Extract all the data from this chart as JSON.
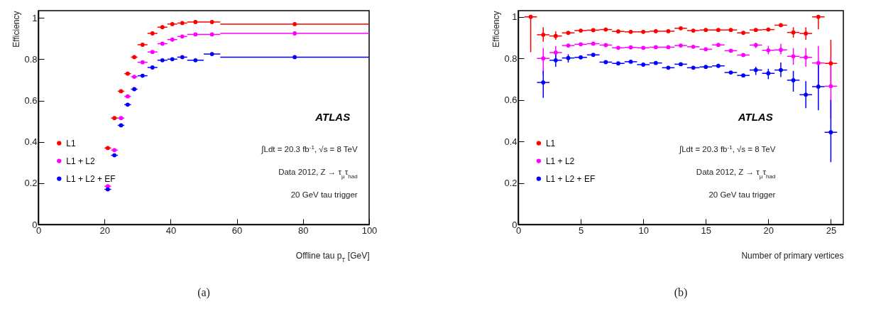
{
  "chart_data": [
    {
      "type": "scatter",
      "xlabel": "Offline tau p$_{T}$ [GeV]",
      "ylabel": "Efficiency",
      "xlim": [
        0,
        100
      ],
      "xticks": [
        0,
        20,
        40,
        60,
        80,
        100
      ],
      "ylim": [
        0,
        1.035
      ],
      "yticks": [
        0,
        0.2,
        0.4,
        0.6,
        0.8,
        1
      ],
      "grid": false,
      "legend": "bottom left",
      "marker": "circle",
      "x": [
        21,
        23,
        25,
        27,
        29,
        31.5,
        34.5,
        37.5,
        40.5,
        43.5,
        47.5,
        52.5,
        77.5
      ],
      "series": [
        {
          "name": "L1",
          "color": "#ff0000",
          "values": [
            0.37,
            0.515,
            0.645,
            0.73,
            0.81,
            0.87,
            0.925,
            0.955,
            0.97,
            0.975,
            0.98,
            0.98,
            0.97
          ],
          "xerrors": [
            1,
            1,
            1,
            1,
            1,
            1.5,
            1.5,
            1.5,
            1.5,
            1.5,
            2.5,
            2.5,
            22.5
          ]
        },
        {
          "name": "L1 + L2",
          "color": "#ff00ff",
          "values": [
            0.185,
            0.36,
            0.515,
            0.62,
            0.715,
            0.785,
            0.835,
            0.875,
            0.895,
            0.91,
            0.92,
            0.92,
            0.925
          ],
          "xerrors": [
            1,
            1,
            1,
            1,
            1,
            1.5,
            1.5,
            1.5,
            1.5,
            1.5,
            2.5,
            2.5,
            22.5
          ]
        },
        {
          "name": "L1 + L2 + EF",
          "color": "#0000ff",
          "values": [
            0.17,
            0.335,
            0.48,
            0.58,
            0.655,
            0.72,
            0.76,
            0.795,
            0.8,
            0.81,
            0.795,
            0.825,
            0.81
          ],
          "xerrors": [
            1,
            1,
            1,
            1,
            1,
            1.5,
            1.5,
            1.5,
            1.5,
            1.5,
            2.5,
            2.5,
            22.5
          ]
        }
      ],
      "annotations": [
        "ATLAS",
        "∫Ldt = 20.3 fb$^{-1}$, √s = 8 TeV",
        "Data 2012, Z → τ$_{μ}$τ$_{had}$",
        "20 GeV tau trigger",
        "(a)"
      ]
    },
    {
      "type": "scatter",
      "xlabel": "Number of primary vertices",
      "ylabel": "Efficiency",
      "xlim": [
        0,
        26
      ],
      "xticks": [
        0,
        5,
        10,
        15,
        20,
        25
      ],
      "ylim": [
        0,
        1.03
      ],
      "yticks": [
        0,
        0.2,
        0.4,
        0.6,
        0.8,
        1
      ],
      "grid": false,
      "legend": "bottom left",
      "marker": "circle",
      "x": [
        1,
        2,
        3,
        4,
        5,
        6,
        7,
        8,
        9,
        10,
        11,
        12,
        13,
        14,
        15,
        16,
        17,
        18,
        19,
        20,
        21,
        22,
        23,
        24,
        25
      ],
      "series": [
        {
          "name": "L1",
          "color": "#ff0000",
          "values": [
            1.0,
            0.914,
            0.908,
            0.923,
            0.934,
            0.936,
            0.939,
            0.93,
            0.928,
            0.928,
            0.931,
            0.931,
            0.945,
            0.934,
            0.937,
            0.937,
            0.937,
            0.923,
            0.937,
            0.939,
            0.96,
            0.925,
            0.92,
            1.0,
            0.776
          ],
          "errors": [
            [
              0.83,
              1.0
            ],
            [
              0.88,
              0.95
            ],
            [
              0.89,
              0.93
            ],
            null,
            null,
            null,
            null,
            null,
            null,
            null,
            null,
            null,
            null,
            null,
            null,
            null,
            null,
            null,
            null,
            null,
            null,
            [
              0.9,
              0.95
            ],
            [
              0.89,
              0.95
            ],
            [
              0.94,
              1.0
            ],
            [
              0.66,
              0.89
            ]
          ],
          "xerrors": [
            0.5,
            0.5,
            0.5,
            0.5,
            0.5,
            0.5,
            0.5,
            0.5,
            0.5,
            0.5,
            0.5,
            0.5,
            0.5,
            0.5,
            0.5,
            0.5,
            0.5,
            0.5,
            0.5,
            0.5,
            0.5,
            0.5,
            0.5,
            0.5,
            0.5
          ]
        },
        {
          "name": "L1 + L2",
          "color": "#ff00ff",
          "values": [
            null,
            0.8,
            0.828,
            0.862,
            0.868,
            0.871,
            0.864,
            0.851,
            0.853,
            0.851,
            0.854,
            0.854,
            0.862,
            0.856,
            0.844,
            0.865,
            0.837,
            0.816,
            0.864,
            0.839,
            0.841,
            0.81,
            0.805,
            0.778,
            0.666
          ],
          "errors": [
            null,
            [
              0.72,
              0.85
            ],
            [
              0.8,
              0.86
            ],
            null,
            null,
            null,
            null,
            null,
            null,
            null,
            null,
            null,
            null,
            null,
            null,
            null,
            null,
            null,
            [
              0.85,
              0.875
            ],
            [
              0.82,
              0.86
            ],
            [
              0.82,
              0.87
            ],
            [
              0.77,
              0.85
            ],
            [
              0.76,
              0.85
            ],
            [
              0.66,
              0.86
            ],
            [
              0.51,
              0.8
            ]
          ],
          "xerrors": [
            null,
            0.5,
            0.5,
            0.5,
            0.5,
            0.5,
            0.5,
            0.5,
            0.5,
            0.5,
            0.5,
            0.5,
            0.5,
            0.5,
            0.5,
            0.5,
            0.5,
            0.5,
            0.5,
            0.5,
            0.5,
            0.5,
            0.5,
            0.5,
            0.5
          ]
        },
        {
          "name": "L1 + L2 + EF",
          "color": "#0000ff",
          "values": [
            null,
            0.684,
            0.791,
            0.802,
            0.805,
            0.817,
            0.782,
            0.776,
            0.784,
            0.77,
            0.778,
            0.755,
            0.772,
            0.755,
            0.759,
            0.764,
            0.732,
            0.718,
            0.744,
            0.728,
            0.744,
            0.695,
            0.625,
            0.664,
            0.444
          ],
          "errors": [
            null,
            [
              0.61,
              0.74
            ],
            [
              0.76,
              0.82
            ],
            [
              0.78,
              0.82
            ],
            null,
            null,
            null,
            null,
            null,
            null,
            null,
            null,
            null,
            null,
            null,
            null,
            null,
            null,
            [
              0.72,
              0.76
            ],
            [
              0.7,
              0.75
            ],
            [
              0.71,
              0.78
            ],
            [
              0.64,
              0.74
            ],
            [
              0.56,
              0.69
            ],
            [
              0.55,
              0.78
            ],
            [
              0.3,
              0.6
            ]
          ],
          "xerrors": [
            null,
            0.5,
            0.5,
            0.5,
            0.5,
            0.5,
            0.5,
            0.5,
            0.5,
            0.5,
            0.5,
            0.5,
            0.5,
            0.5,
            0.5,
            0.5,
            0.5,
            0.5,
            0.5,
            0.5,
            0.5,
            0.5,
            0.5,
            0.5,
            0.5
          ]
        }
      ],
      "annotations": [
        "ATLAS",
        "∫Ldt = 20.3 fb$^{-1}$, √s = 8 TeV",
        "Data 2012, Z → τ$_{μ}$τ$_{had}$",
        "20 GeV tau trigger",
        "(b)"
      ]
    }
  ]
}
